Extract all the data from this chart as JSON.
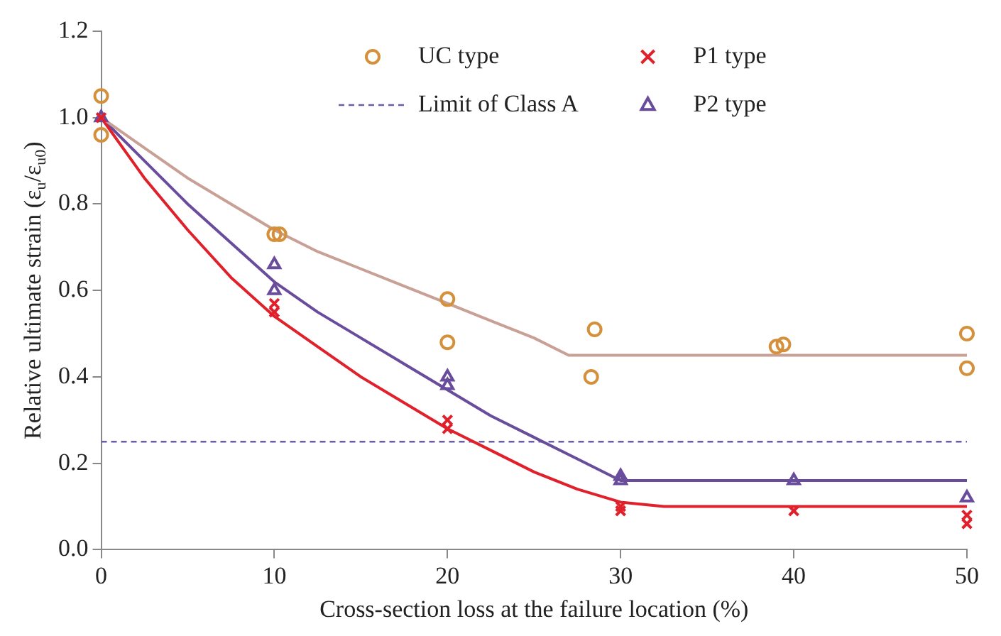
{
  "chart_data": {
    "type": "scatter",
    "xlabel": "Cross-section loss at the failure location (%)",
    "ylabel": "Relative ultimate strain (ε$_{u}$/ε$_{u0}$)",
    "xlim": [
      0,
      50
    ],
    "xticks": [
      0,
      10,
      20,
      30,
      40,
      50
    ],
    "ylim": [
      0,
      1.2
    ],
    "yticks": [
      {
        "value": 0,
        "label": "0.0"
      },
      {
        "value": 0.2,
        "label": "0.2"
      },
      {
        "value": 0.4,
        "label": "0.4"
      },
      {
        "value": 0.6,
        "label": "0.6"
      },
      {
        "value": 0.8,
        "label": "0.8"
      },
      {
        "value": 1,
        "label": "1.0"
      },
      {
        "value": 1.2,
        "label": "1.2"
      }
    ],
    "grid": false,
    "legend": "top",
    "series": [
      {
        "name": "UC type",
        "marker": "circle",
        "color": "#d4903a",
        "x": [
          0,
          0,
          10,
          10.3,
          20,
          20,
          28.5,
          28.3,
          39,
          39.4,
          50,
          50
        ],
        "values": [
          1.05,
          0.96,
          0.73,
          0.73,
          0.58,
          0.48,
          0.51,
          0.4,
          0.47,
          0.475,
          0.5,
          0.42
        ]
      },
      {
        "name": "P1 type",
        "marker": "cross",
        "color": "#e0202a",
        "x": [
          0,
          10,
          10,
          20,
          20,
          30,
          30,
          40,
          50,
          50
        ],
        "values": [
          1.0,
          0.55,
          0.57,
          0.28,
          0.3,
          0.09,
          0.1,
          0.09,
          0.06,
          0.08
        ]
      },
      {
        "name": "P2 type",
        "marker": "triangle",
        "color": "#6a4c9c",
        "x": [
          0,
          10,
          10,
          20,
          20,
          30,
          30,
          40,
          50
        ],
        "values": [
          1.0,
          0.66,
          0.6,
          0.38,
          0.4,
          0.17,
          0.16,
          0.16,
          0.12
        ]
      },
      {
        "type": "line",
        "marker": "none",
        "color": "#c8a095",
        "x": [
          0,
          2.5,
          5,
          7.5,
          10,
          12.5,
          15,
          17.5,
          20,
          22.5,
          25,
          27,
          50
        ],
        "values": [
          1.0,
          0.93,
          0.86,
          0.8,
          0.74,
          0.69,
          0.65,
          0.61,
          0.57,
          0.53,
          0.49,
          0.45,
          0.45
        ]
      },
      {
        "type": "line",
        "marker": "none",
        "color": "#e0202a",
        "x": [
          0,
          2.5,
          5,
          7.5,
          10,
          12.5,
          15,
          17.5,
          20,
          22.5,
          25,
          27.5,
          30,
          32.5,
          35,
          50
        ],
        "values": [
          1.0,
          0.86,
          0.74,
          0.63,
          0.54,
          0.47,
          0.4,
          0.34,
          0.28,
          0.23,
          0.18,
          0.14,
          0.11,
          0.1,
          0.1,
          0.1
        ]
      },
      {
        "type": "line",
        "marker": "none",
        "color": "#6a4c9c",
        "x": [
          0,
          2.5,
          5,
          7.5,
          10,
          12.5,
          15,
          17.5,
          20,
          22.5,
          25,
          27.5,
          30,
          50
        ],
        "values": [
          1.0,
          0.9,
          0.8,
          0.71,
          0.62,
          0.55,
          0.49,
          0.43,
          0.37,
          0.31,
          0.26,
          0.21,
          0.16,
          0.16
        ]
      }
    ],
    "ref_lines": [
      {
        "axis": "y",
        "value": 0.25,
        "label": "Limit of Class A",
        "color": "#6a5ca8",
        "line_style": "dashed"
      }
    ]
  }
}
